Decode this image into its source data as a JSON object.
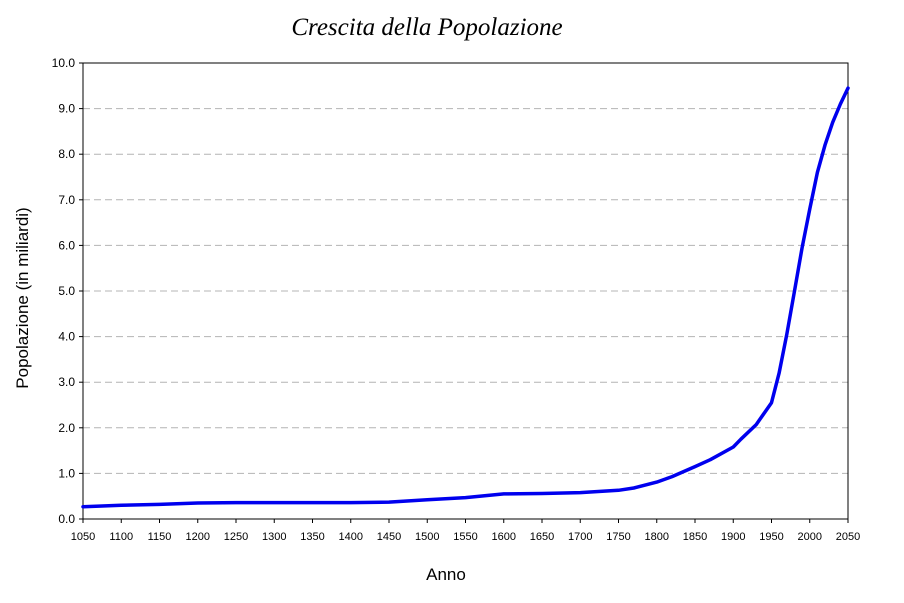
{
  "chart_data": {
    "type": "line",
    "title": "Crescita della Popolazione",
    "xlabel": "Anno",
    "ylabel": "Popolazione (in miliardi)",
    "xlim": [
      1050,
      2050
    ],
    "ylim": [
      0,
      10
    ],
    "grid": "horizontal dashed",
    "line_color": "#0000ee",
    "xticks": [
      "1050",
      "1100",
      "1150",
      "1200",
      "1250",
      "1300",
      "1350",
      "1400",
      "1450",
      "1500",
      "1550",
      "1600",
      "1650",
      "1700",
      "1750",
      "1800",
      "1850",
      "1900",
      "1950",
      "2000",
      "2050"
    ],
    "yticks": [
      "0.0",
      "1.0",
      "2.0",
      "3.0",
      "4.0",
      "5.0",
      "6.0",
      "7.0",
      "8.0",
      "9.0",
      "10.0"
    ],
    "series": [
      {
        "x": [
          1050,
          1100,
          1150,
          1200,
          1250,
          1300,
          1350,
          1400,
          1450,
          1500,
          1550,
          1600,
          1650,
          1700,
          1750,
          1770,
          1800,
          1820,
          1850,
          1870,
          1900,
          1910,
          1930,
          1950,
          1960,
          1970,
          1980,
          1990,
          2000,
          2010,
          2020,
          2030,
          2040,
          2050
        ],
        "y": [
          0.27,
          0.3,
          0.32,
          0.35,
          0.36,
          0.36,
          0.36,
          0.36,
          0.37,
          0.42,
          0.47,
          0.55,
          0.56,
          0.58,
          0.63,
          0.68,
          0.81,
          0.93,
          1.15,
          1.3,
          1.58,
          1.75,
          2.07,
          2.55,
          3.2,
          4.05,
          5.0,
          5.95,
          6.8,
          7.6,
          8.2,
          8.7,
          9.1,
          9.45
        ]
      }
    ]
  }
}
